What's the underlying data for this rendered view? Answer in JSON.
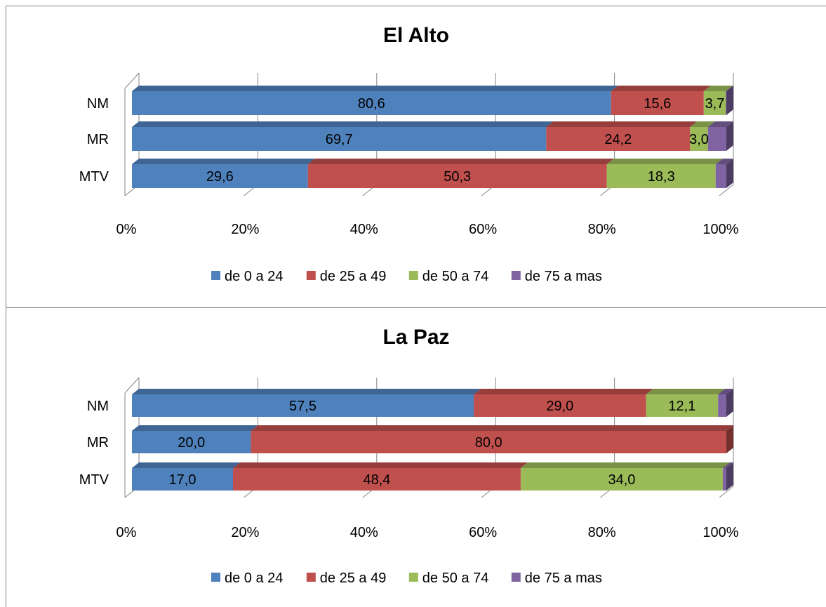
{
  "chart_data": [
    {
      "type": "bar",
      "orientation": "horizontal",
      "stacked": "percent",
      "style": "3d",
      "title": "El Alto",
      "categories": [
        "NM",
        "MR",
        "MTV"
      ],
      "series": [
        {
          "name": "de 0 a 24",
          "color": "#4f81bd",
          "values": [
            80.6,
            69.7,
            29.6
          ],
          "labels": [
            "80,6",
            "69,7",
            "29,6"
          ]
        },
        {
          "name": "de 25 a 49",
          "color": "#c0504d",
          "values": [
            15.6,
            24.2,
            50.3
          ],
          "labels": [
            "15,6",
            "24,2",
            "50,3"
          ]
        },
        {
          "name": "de 50 a 74",
          "color": "#9bbb59",
          "values": [
            3.7,
            3.0,
            18.3
          ],
          "labels": [
            "3,7",
            "3,0",
            "18,3"
          ]
        },
        {
          "name": "de 75 a mas",
          "color": "#8064a2",
          "values": [
            0.1,
            3.1,
            1.8
          ],
          "labels": [
            "",
            "",
            ""
          ]
        }
      ],
      "x_ticks": [
        "0%",
        "20%",
        "40%",
        "60%",
        "80%",
        "100%"
      ],
      "xlim": [
        0,
        100
      ],
      "grid": true,
      "legend_position": "bottom"
    },
    {
      "type": "bar",
      "orientation": "horizontal",
      "stacked": "percent",
      "style": "3d",
      "title": "La Paz",
      "categories": [
        "NM",
        "MR",
        "MTV"
      ],
      "series": [
        {
          "name": "de 0 a 24",
          "color": "#4f81bd",
          "values": [
            57.5,
            20.0,
            17.0
          ],
          "labels": [
            "57,5",
            "20,0",
            "17,0"
          ]
        },
        {
          "name": "de 25 a 49",
          "color": "#c0504d",
          "values": [
            29.0,
            80.0,
            48.4
          ],
          "labels": [
            "29,0",
            "80,0",
            "48,4"
          ]
        },
        {
          "name": "de 50 a 74",
          "color": "#9bbb59",
          "values": [
            12.1,
            0.0,
            34.0
          ],
          "labels": [
            "12,1",
            "",
            "34,0"
          ]
        },
        {
          "name": "de 75 a mas",
          "color": "#8064a2",
          "values": [
            1.4,
            0.0,
            0.6
          ],
          "labels": [
            "",
            "",
            ""
          ]
        }
      ],
      "x_ticks": [
        "0%",
        "20%",
        "40%",
        "60%",
        "80%",
        "100%"
      ],
      "xlim": [
        0,
        100
      ],
      "grid": true,
      "legend_position": "bottom"
    }
  ]
}
